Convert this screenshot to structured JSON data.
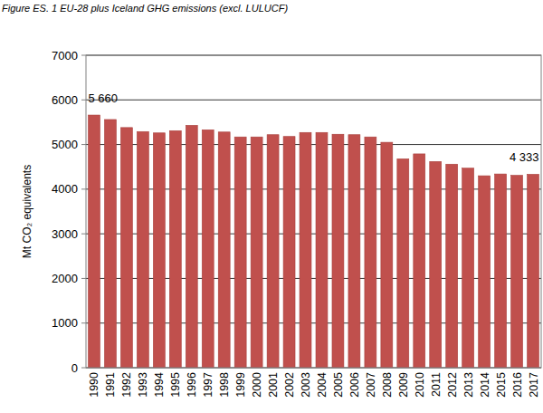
{
  "chart_data": {
    "type": "bar",
    "title": "Figure ES. 1  EU-28 plus Iceland GHG emissions (excl. LULUCF)",
    "y_label": "Mt CO₂ equivalents",
    "categories": [
      "1990",
      "1991",
      "1992",
      "1993",
      "1994",
      "1995",
      "1996",
      "1997",
      "1998",
      "1999",
      "2000",
      "2001",
      "2002",
      "2003",
      "2004",
      "2005",
      "2006",
      "2007",
      "2008",
      "2009",
      "2010",
      "2011",
      "2012",
      "2013",
      "2014",
      "2015",
      "2016",
      "2017"
    ],
    "values": [
      5660,
      5560,
      5380,
      5290,
      5260,
      5310,
      5430,
      5330,
      5280,
      5170,
      5170,
      5220,
      5180,
      5270,
      5270,
      5230,
      5220,
      5170,
      5050,
      4680,
      4790,
      4620,
      4560,
      4470,
      4300,
      4340,
      4310,
      4333
    ],
    "value_labels": [
      "5 660",
      null,
      null,
      null,
      null,
      null,
      null,
      null,
      null,
      null,
      null,
      null,
      null,
      null,
      null,
      null,
      null,
      null,
      null,
      null,
      null,
      null,
      null,
      null,
      null,
      null,
      null,
      "4 333"
    ],
    "color": "#c0504d",
    "ylim": [
      0,
      7000
    ],
    "yticks": [
      0,
      1000,
      2000,
      3000,
      4000,
      5000,
      6000,
      7000
    ],
    "grid": true
  }
}
